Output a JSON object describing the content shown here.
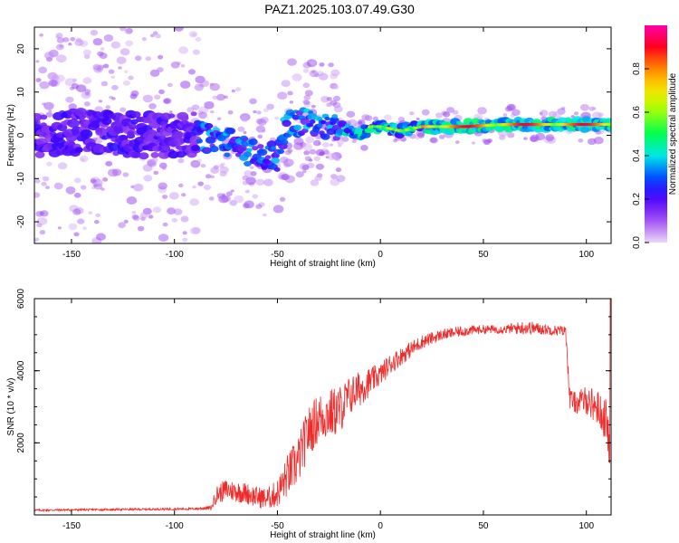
{
  "title": "PAZ1.2025.103.07.49.G30",
  "chart_data": [
    {
      "type": "heatmap",
      "xlabel": "Height of straight line (km)",
      "ylabel": "Frequency (Hz)",
      "xlim": [
        -168,
        112
      ],
      "ylim": [
        -25,
        25
      ],
      "xticks": [
        -150,
        -100,
        -50,
        0,
        50,
        100
      ],
      "yticks": [
        -20,
        -10,
        0,
        10,
        20
      ],
      "colorbar": {
        "label": "Normalized spectral amplitude",
        "range": [
          0,
          1
        ],
        "ticks": [
          "0.0",
          "0.2",
          "0.4",
          "0.6",
          "0.8"
        ],
        "tick_values": [
          0,
          0.2,
          0.4,
          0.6,
          0.8
        ],
        "colormap": "rainbow"
      },
      "ridge": {
        "x": [
          -168,
          -150,
          -130,
          -110,
          -90,
          -80,
          -70,
          -60,
          -50,
          -45,
          -40,
          -30,
          -20,
          -10,
          -5,
          0,
          10,
          20,
          40,
          60,
          80,
          100,
          112
        ],
        "y": [
          0,
          1,
          0,
          0,
          0,
          -1,
          -2,
          -5,
          -5,
          3,
          3,
          3,
          2,
          0,
          2,
          2,
          1,
          2,
          2,
          2.5,
          2.5,
          2.5,
          2.5
        ]
      },
      "grid": false
    },
    {
      "type": "line",
      "xlabel": "Height of straight line (km)",
      "ylabel": "SNR (10 * v/v)",
      "xlim": [
        -168,
        112
      ],
      "ylim": [
        0,
        6000
      ],
      "xticks": [
        -150,
        -100,
        -50,
        0,
        50,
        100
      ],
      "yticks": [
        2000,
        4000,
        6000
      ],
      "series": [
        {
          "color": "#ee2b2b",
          "x": [
            -168,
            -150,
            -130,
            -110,
            -90,
            -82,
            -80,
            -75,
            -70,
            -65,
            -60,
            -55,
            -50,
            -45,
            -40,
            -35,
            -30,
            -25,
            -20,
            -15,
            -10,
            -5,
            0,
            5,
            10,
            20,
            30,
            40,
            50,
            60,
            70,
            80,
            90,
            92,
            95,
            100,
            105,
            110,
            112
          ],
          "y": [
            130,
            140,
            150,
            160,
            170,
            200,
            550,
            700,
            650,
            600,
            500,
            450,
            600,
            1100,
            1500,
            2300,
            2700,
            2800,
            2900,
            3300,
            3500,
            3700,
            3900,
            4200,
            4400,
            4800,
            5000,
            5100,
            5150,
            5150,
            5200,
            5150,
            5100,
            3200,
            3100,
            3200,
            3000,
            2600,
            1200
          ],
          "noise": [
            30,
            30,
            30,
            30,
            30,
            60,
            250,
            300,
            300,
            300,
            300,
            300,
            400,
            600,
            700,
            700,
            700,
            700,
            700,
            550,
            500,
            400,
            300,
            300,
            250,
            200,
            150,
            150,
            120,
            120,
            200,
            150,
            150,
            300,
            300,
            400,
            500,
            600,
            500
          ]
        }
      ],
      "grid": false
    }
  ]
}
